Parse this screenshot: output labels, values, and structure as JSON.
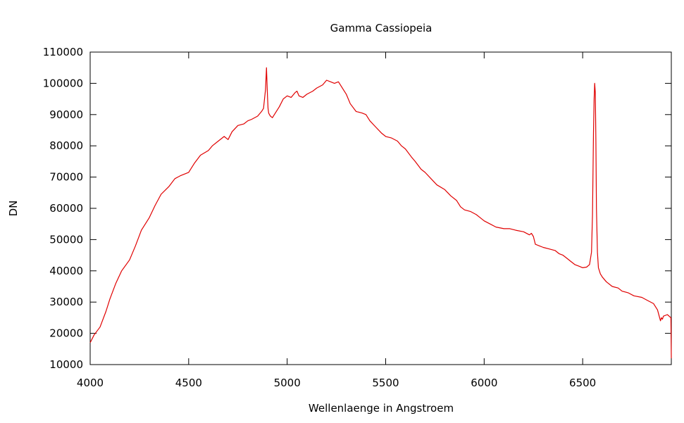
{
  "chart_data": {
    "type": "line",
    "title": "Gamma Cassiopeia",
    "xlabel": "Wellenlaenge in Angstroem",
    "ylabel": "DN",
    "xlim": [
      4000,
      6950
    ],
    "ylim": [
      10000,
      110000
    ],
    "x_ticks": [
      "4000",
      "4500",
      "5000",
      "5500",
      "6000",
      "6500"
    ],
    "y_ticks": [
      "10000",
      "20000",
      "30000",
      "40000",
      "50000",
      "60000",
      "70000",
      "80000",
      "90000",
      "100000",
      "110000"
    ],
    "grid": false,
    "legend": "none",
    "series": [
      {
        "color": "#e00000",
        "x": [
          4000,
          4020,
          4050,
          4080,
          4100,
          4130,
          4160,
          4200,
          4230,
          4260,
          4300,
          4330,
          4360,
          4400,
          4430,
          4460,
          4500,
          4530,
          4560,
          4600,
          4620,
          4650,
          4680,
          4700,
          4720,
          4750,
          4780,
          4800,
          4820,
          4850,
          4870,
          4880,
          4890,
          4895,
          4900,
          4903,
          4906,
          4910,
          4915,
          4925,
          4940,
          4960,
          4980,
          5000,
          5020,
          5040,
          5050,
          5060,
          5080,
          5100,
          5130,
          5150,
          5180,
          5200,
          5220,
          5240,
          5260,
          5280,
          5300,
          5320,
          5350,
          5380,
          5400,
          5420,
          5450,
          5480,
          5500,
          5530,
          5560,
          5580,
          5600,
          5630,
          5650,
          5680,
          5700,
          5730,
          5760,
          5800,
          5830,
          5860,
          5880,
          5900,
          5930,
          5960,
          5980,
          6000,
          6030,
          6060,
          6100,
          6130,
          6160,
          6200,
          6230,
          6240,
          6250,
          6260,
          6280,
          6300,
          6330,
          6360,
          6380,
          6400,
          6420,
          6440,
          6460,
          6480,
          6500,
          6520,
          6535,
          6545,
          6550,
          6555,
          6558,
          6561,
          6564,
          6567,
          6570,
          6575,
          6580,
          6590,
          6600,
          6620,
          6650,
          6680,
          6700,
          6730,
          6760,
          6800,
          6830,
          6860,
          6880,
          6895,
          6900,
          6905,
          6910,
          6930,
          6948,
          6950
        ],
        "y": [
          17000,
          19500,
          22000,
          27000,
          31000,
          36000,
          40000,
          43500,
          48000,
          53000,
          57000,
          61000,
          64500,
          67000,
          69500,
          70500,
          71500,
          74500,
          77000,
          78500,
          80000,
          81500,
          83000,
          82000,
          84500,
          86500,
          87000,
          88000,
          88500,
          89500,
          91000,
          92000,
          98000,
          105000,
          96000,
          92000,
          90500,
          90000,
          89500,
          89000,
          90500,
          92500,
          95000,
          96000,
          95500,
          97000,
          97500,
          96000,
          95500,
          96500,
          97500,
          98500,
          99500,
          101000,
          100500,
          100000,
          100500,
          98500,
          96500,
          93500,
          91000,
          90500,
          90000,
          88000,
          86000,
          84000,
          83000,
          82500,
          81500,
          80000,
          79000,
          76500,
          75000,
          72500,
          71500,
          69500,
          67500,
          66000,
          64000,
          62500,
          60500,
          59500,
          59000,
          58000,
          57000,
          56000,
          55000,
          54000,
          53500,
          53500,
          53000,
          52500,
          51500,
          52000,
          51000,
          48500,
          48000,
          47500,
          47000,
          46500,
          45500,
          45000,
          44000,
          43000,
          42000,
          41500,
          41000,
          41200,
          42000,
          46000,
          58000,
          84000,
          95000,
          100000,
          97000,
          82000,
          60000,
          46000,
          41000,
          39000,
          38000,
          36500,
          35000,
          34500,
          33500,
          33000,
          32000,
          31500,
          30500,
          29500,
          27500,
          24000,
          25000,
          24500,
          25500,
          26000,
          25000,
          12000
        ]
      }
    ]
  }
}
